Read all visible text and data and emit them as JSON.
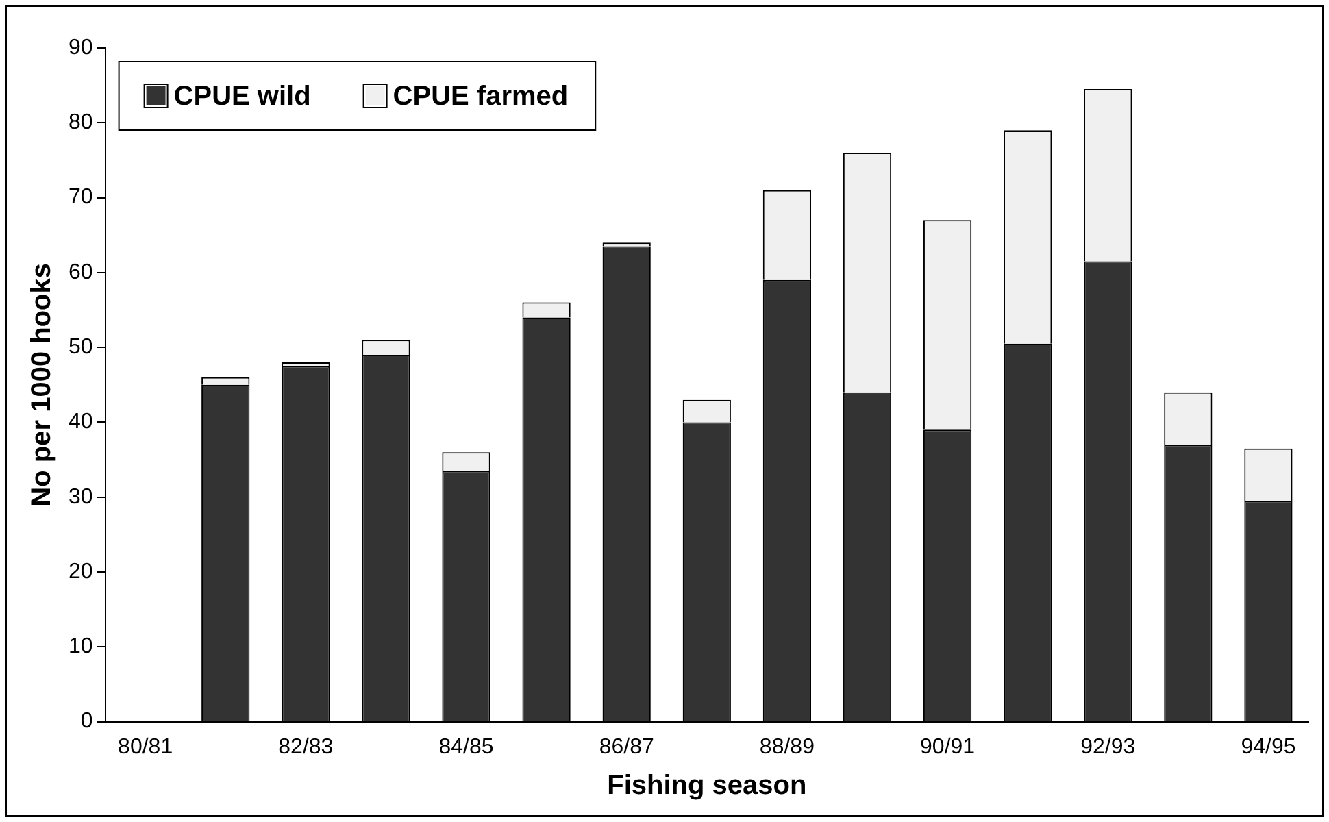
{
  "chart_data": {
    "type": "bar",
    "stacked": true,
    "xlabel": "Fishing season",
    "ylabel": "No per 1000 hooks",
    "categories": [
      "80/81",
      null,
      "82/83",
      null,
      "84/85",
      null,
      "86/87",
      null,
      "88/89",
      null,
      "90/91",
      null,
      "92/93",
      null,
      "94/95"
    ],
    "series": [
      {
        "name": "CPUE wild",
        "color": "#333333",
        "values": [
          null,
          45,
          47.5,
          49,
          33.5,
          54,
          63.5,
          40,
          59,
          44,
          39,
          50.5,
          61.5,
          37,
          29.5
        ]
      },
      {
        "name": "CPUE farmed",
        "color": "#f0f0f0",
        "values": [
          null,
          1,
          0.5,
          2,
          2.5,
          2,
          0.5,
          3,
          12,
          32,
          28,
          28.5,
          23,
          7,
          7
        ]
      }
    ],
    "ylim": [
      0,
      90
    ],
    "yticks": [
      0,
      10,
      20,
      30,
      40,
      50,
      60,
      70,
      80,
      90
    ],
    "grid": false,
    "legend": "top left"
  }
}
